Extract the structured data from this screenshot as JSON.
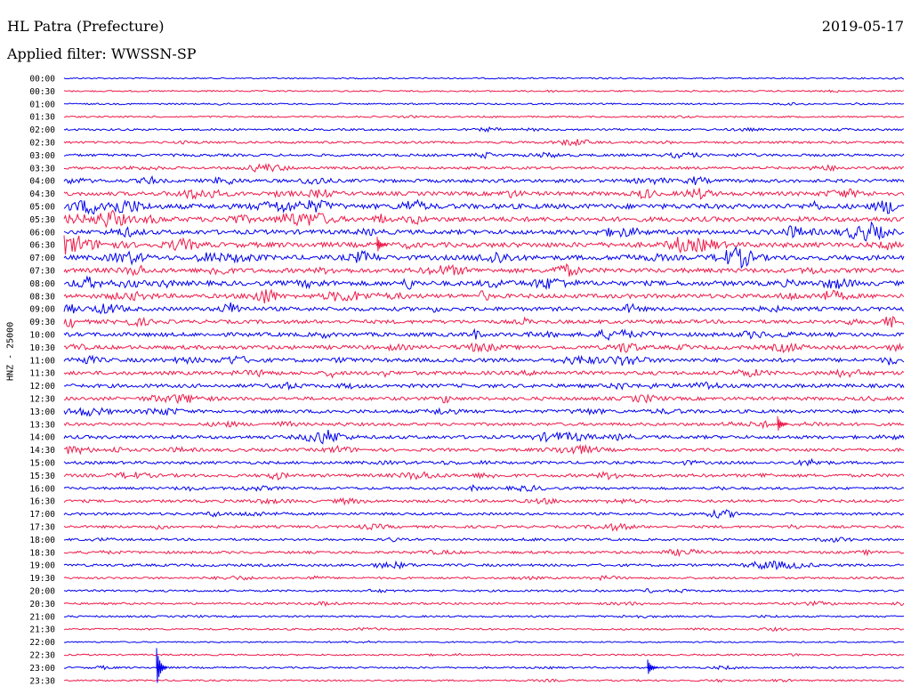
{
  "header": {
    "station": "HL Patra (Prefecture)",
    "date": "2019-05-17",
    "filter": "Applied filter: WWSSN-SP"
  },
  "chart_data": {
    "type": "line",
    "title": "HL Patra (Prefecture)",
    "ylabel": "HNZ - 25000",
    "xlabel": "",
    "row_labels": [
      "00:00",
      "00:30",
      "01:00",
      "01:30",
      "02:00",
      "02:30",
      "03:00",
      "03:30",
      "04:00",
      "04:30",
      "05:00",
      "05:30",
      "06:00",
      "06:30",
      "07:00",
      "07:30",
      "08:00",
      "08:30",
      "09:00",
      "09:30",
      "10:00",
      "10:30",
      "11:00",
      "11:30",
      "12:00",
      "12:30",
      "13:00",
      "13:30",
      "14:00",
      "14:30",
      "15:00",
      "15:30",
      "16:00",
      "16:30",
      "17:00",
      "17:30",
      "18:00",
      "18:30",
      "19:00",
      "19:30",
      "20:00",
      "20:30",
      "21:00",
      "21:30",
      "22:00",
      "22:30",
      "23:00",
      "23:30"
    ],
    "row_colors": [
      "#0000ee",
      "#ee1a4a"
    ],
    "activity_level": [
      0.08,
      0.1,
      0.12,
      0.12,
      0.2,
      0.25,
      0.3,
      0.3,
      0.45,
      0.55,
      0.75,
      0.7,
      0.65,
      0.75,
      0.7,
      0.65,
      0.7,
      0.6,
      0.55,
      0.5,
      0.55,
      0.55,
      0.55,
      0.5,
      0.5,
      0.45,
      0.45,
      0.4,
      0.45,
      0.4,
      0.35,
      0.4,
      0.3,
      0.35,
      0.3,
      0.3,
      0.25,
      0.3,
      0.3,
      0.2,
      0.2,
      0.2,
      0.15,
      0.15,
      0.08,
      0.12,
      0.15,
      0.12
    ],
    "grid": false,
    "legend": "none"
  }
}
